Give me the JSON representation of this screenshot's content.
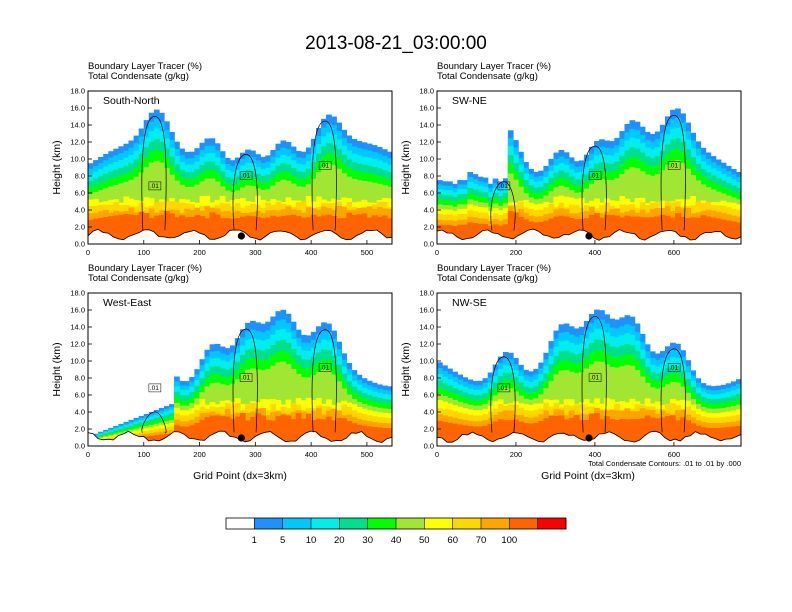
{
  "chart_data": {
    "type": "heatmap",
    "title": "2013-08-21_03:00:00",
    "field_label": "Boundary Layer Tracer",
    "field_units": "(%)",
    "contour_label": "Total Condensate",
    "contour_units": "(g/kg)",
    "ylabel": "Height (km)",
    "xlabel": "Grid Point (dx=3km)",
    "contour_note": "Total Condensate Contours: .01 to .01 by .000",
    "contour_value_label": ".01",
    "ylim": [
      0,
      18
    ],
    "y_ticks": [
      "0.0",
      "2.0",
      "4.0",
      "6.0",
      "8.0",
      "10.0",
      "12.0",
      "14.0",
      "16.0",
      "18.0"
    ],
    "panels": [
      {
        "name": "South-North",
        "xlim": [
          0,
          545
        ],
        "x_ticks": [
          "0",
          "100",
          "200",
          "300",
          "400",
          "500"
        ],
        "marker_x": 275
      },
      {
        "name": "SW-NE",
        "xlim": [
          0,
          770
        ],
        "x_ticks": [
          "0",
          "200",
          "400",
          "600"
        ],
        "marker_x": 385
      },
      {
        "name": "West-East",
        "xlim": [
          0,
          545
        ],
        "x_ticks": [
          "0",
          "100",
          "200",
          "300",
          "400",
          "500"
        ],
        "marker_x": 275
      },
      {
        "name": "NW-SE",
        "xlim": [
          0,
          770
        ],
        "x_ticks": [
          "0",
          "200",
          "400",
          "600"
        ],
        "marker_x": 385
      }
    ],
    "colorbar": {
      "labels": [
        "1",
        "5",
        "10",
        "20",
        "30",
        "40",
        "50",
        "60",
        "70",
        "100"
      ],
      "colors": [
        "#ffffff",
        "#1e90ff",
        "#00c8ff",
        "#00eeee",
        "#00e08c",
        "#00ff00",
        "#a0e632",
        "#ffff00",
        "#ffd700",
        "#ffa500",
        "#ff6400",
        "#ff0000"
      ]
    }
  }
}
